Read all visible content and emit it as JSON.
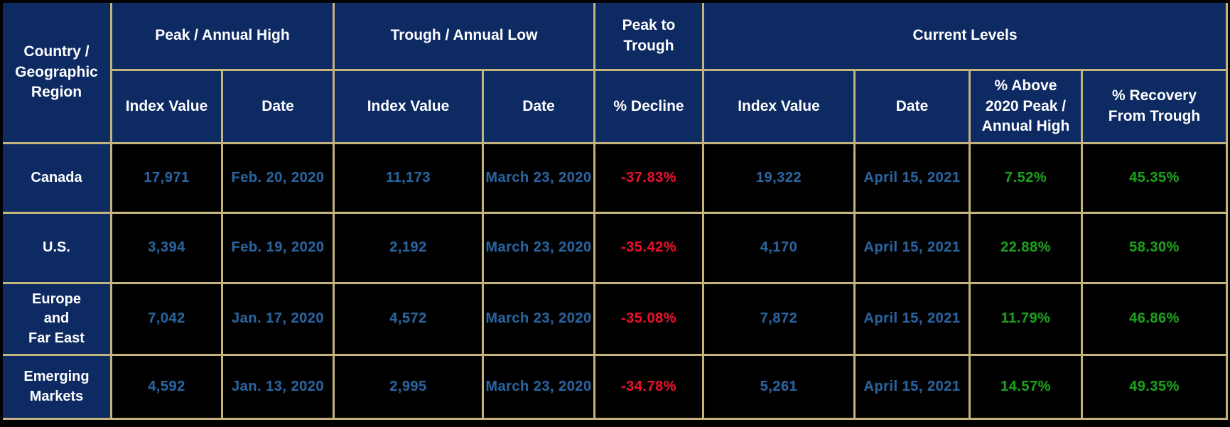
{
  "colors": {
    "header_bg": "#0d2a63",
    "data_bg": "#000000",
    "grid_border": "#c3b37c",
    "header_text": "#ffffff",
    "value_blue": "#2a639c",
    "decline_red": "#e8112d",
    "gain_green": "#1e9e1e"
  },
  "header": {
    "country": "Country /\nGeographic\nRegion",
    "groups": {
      "peak": "Peak / Annual High",
      "trough": "Trough / Annual Low",
      "peak_to_trough": "Peak to\nTrough",
      "current": "Current Levels"
    },
    "sub": {
      "peak_index": "Index Value",
      "peak_date": "Date",
      "trough_index": "Index Value",
      "trough_date": "Date",
      "decline": "% Decline",
      "current_index": "Index Value",
      "current_date": "Date",
      "above_peak": "% Above\n2020 Peak /\nAnnual High",
      "recovery": "% Recovery\nFrom Trough"
    }
  },
  "rows": [
    {
      "region": "Canada",
      "peak_index": "17,971",
      "peak_date": "Feb. 20, 2020",
      "trough_index": "11,173",
      "trough_date": "March 23, 2020",
      "decline": "-37.83%",
      "current_index": "19,322",
      "current_date": "April 15, 2021",
      "above_peak": "7.52%",
      "recovery": "45.35%"
    },
    {
      "region": "U.S.",
      "peak_index": "3,394",
      "peak_date": "Feb. 19, 2020",
      "trough_index": "2,192",
      "trough_date": "March 23, 2020",
      "decline": "-35.42%",
      "current_index": "4,170",
      "current_date": "April 15, 2021",
      "above_peak": "22.88%",
      "recovery": "58.30%"
    },
    {
      "region": "Europe\nand\nFar East",
      "peak_index": "7,042",
      "peak_date": "Jan. 17, 2020",
      "trough_index": "4,572",
      "trough_date": "March 23, 2020",
      "decline": "-35.08%",
      "current_index": "7,872",
      "current_date": "April 15, 2021",
      "above_peak": "11.79%",
      "recovery": "46.86%"
    },
    {
      "region": "Emerging\nMarkets",
      "peak_index": "4,592",
      "peak_date": "Jan. 13, 2020",
      "trough_index": "2,995",
      "trough_date": "March 23, 2020",
      "decline": "-34.78%",
      "current_index": "5,261",
      "current_date": "April 15, 2021",
      "above_peak": "14.57%",
      "recovery": "49.35%"
    }
  ],
  "chart_data": {
    "type": "table",
    "columns": [
      "Country / Geographic Region",
      "Peak / Annual High - Index Value",
      "Peak / Annual High - Date",
      "Trough / Annual Low - Index Value",
      "Trough / Annual Low - Date",
      "Peak to Trough - % Decline",
      "Current Levels - Index Value",
      "Current Levels - Date",
      "Current Levels - % Above 2020 Peak / Annual High",
      "Current Levels - % Recovery From Trough"
    ],
    "rows": [
      [
        "Canada",
        17971,
        "Feb. 20, 2020",
        11173,
        "March 23, 2020",
        -37.83,
        19322,
        "April 15, 2021",
        7.52,
        45.35
      ],
      [
        "U.S.",
        3394,
        "Feb. 19, 2020",
        2192,
        "March 23, 2020",
        -35.42,
        4170,
        "April 15, 2021",
        22.88,
        58.3
      ],
      [
        "Europe and Far East",
        7042,
        "Jan. 17, 2020",
        4572,
        "March 23, 2020",
        -35.08,
        7872,
        "April 15, 2021",
        11.79,
        46.86
      ],
      [
        "Emerging Markets",
        4592,
        "Jan. 13, 2020",
        2995,
        "March 23, 2020",
        -34.78,
        5261,
        "April 15, 2021",
        14.57,
        49.35
      ]
    ]
  }
}
